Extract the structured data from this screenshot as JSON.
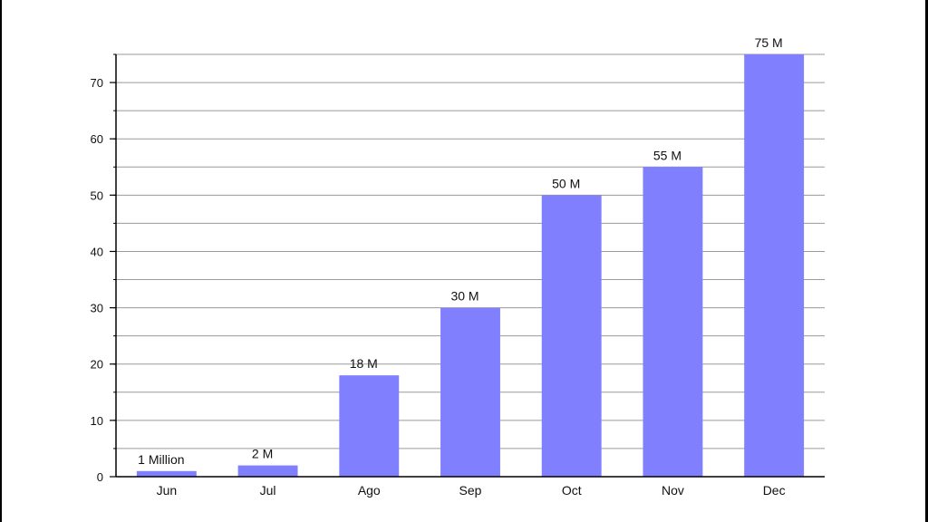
{
  "chart_data": {
    "type": "bar",
    "categories": [
      "Jun",
      "Jul",
      "Ago",
      "Sep",
      "Oct",
      "Nov",
      "Dec"
    ],
    "values": [
      1,
      2,
      18,
      30,
      50,
      55,
      75
    ],
    "data_labels": [
      "1 Million",
      "2 M",
      "18 M",
      "30 M",
      "50 M",
      "55 M",
      "75 M"
    ],
    "yticks": [
      0,
      10,
      20,
      30,
      40,
      50,
      60,
      70
    ],
    "ylim": [
      0,
      75
    ],
    "minor_step": 5,
    "grid": true,
    "bar_color": "#8080ff",
    "title": "",
    "xlabel": "",
    "ylabel": ""
  }
}
